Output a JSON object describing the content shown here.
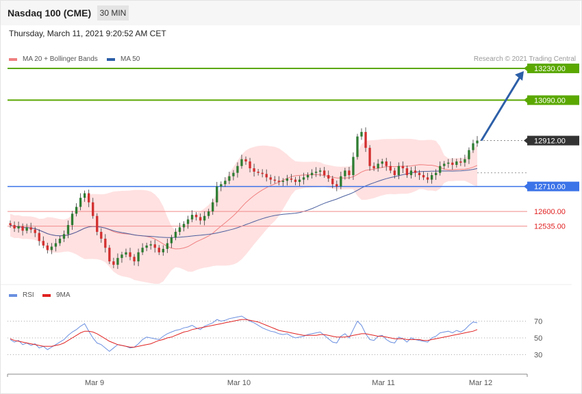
{
  "header": {
    "title": "Nasdaq 100 (CME)",
    "timeframe": "30 MIN",
    "timestamp": "Thursday, March 11, 2021 9:20:52 AM CET"
  },
  "legend": {
    "ma20_label": "MA 20 + Bollinger Bands",
    "ma50_label": "MA 50",
    "credit": "Research © 2021 Trading Central",
    "rsi_label": "RSI",
    "rsi_ma_label": "9MA"
  },
  "colors": {
    "up_candle": "#2e7d32",
    "down_candle": "#d32f2f",
    "resistance": "#5aa800",
    "support_blue": "#3b73e8",
    "support_red": "#f08a8a",
    "current_tag": "#333333",
    "ma20": "#f08080",
    "ma50": "#4a5f9e",
    "bollinger_fill": "#ffdcdc",
    "arrow": "#2d5fa8",
    "rsi": "#6a8fe0",
    "rsi_ma": "#e02020"
  },
  "chart_data": [
    {
      "type": "candlestick",
      "title": "Nasdaq 100 (CME)",
      "xlabel": "",
      "ylabel": "",
      "x_ticks": [
        "Mar 9",
        "Mar 10",
        "Mar 11",
        "Mar 12"
      ],
      "ylim": [
        12290,
        13260
      ],
      "price_levels": [
        {
          "value": 13230.0,
          "label": "13230.00",
          "kind": "resistance"
        },
        {
          "value": 13090.0,
          "label": "13090.00",
          "kind": "resistance"
        },
        {
          "value": 12912.0,
          "label": "12912.00",
          "kind": "current"
        },
        {
          "value": 12710.0,
          "label": "12710.00",
          "kind": "pivot"
        },
        {
          "value": 12600.0,
          "label": "12600.00",
          "kind": "support"
        },
        {
          "value": 12535.0,
          "label": "12535.00",
          "kind": "support"
        }
      ],
      "closes": [
        12540,
        12525,
        12535,
        12515,
        12530,
        12520,
        12505,
        12470,
        12450,
        12430,
        12445,
        12460,
        12480,
        12500,
        12540,
        12590,
        12620,
        12660,
        12680,
        12640,
        12580,
        12510,
        12480,
        12440,
        12380,
        12365,
        12395,
        12410,
        12420,
        12400,
        12380,
        12420,
        12440,
        12450,
        12455,
        12440,
        12420,
        12435,
        12460,
        12485,
        12510,
        12530,
        12545,
        12565,
        12585,
        12575,
        12560,
        12580,
        12600,
        12640,
        12710,
        12720,
        12735,
        12755,
        12770,
        12800,
        12830,
        12820,
        12790,
        12775,
        12770,
        12765,
        12750,
        12740,
        12735,
        12730,
        12735,
        12745,
        12740,
        12730,
        12740,
        12750,
        12760,
        12770,
        12775,
        12780,
        12760,
        12745,
        12720,
        12710,
        12755,
        12780,
        12760,
        12840,
        12930,
        12950,
        12880,
        12800,
        12790,
        12810,
        12820,
        12800,
        12780,
        12760,
        12800,
        12790,
        12760,
        12780,
        12770,
        12760,
        12750,
        12740,
        12760,
        12770,
        12800,
        12810,
        12815,
        12805,
        12820,
        12815,
        12830,
        12870,
        12900,
        12912
      ],
      "rsi": {
        "levels": [
          70,
          50,
          30
        ],
        "ylim": [
          10,
          90
        ],
        "values": [
          48,
          45,
          47,
          42,
          44,
          41,
          43,
          38,
          40,
          36,
          39,
          42,
          45,
          48,
          53,
          57,
          60,
          64,
          67,
          58,
          50,
          44,
          42,
          38,
          34,
          38,
          42,
          41,
          40,
          38,
          39,
          43,
          48,
          51,
          50,
          49,
          48,
          52,
          55,
          57,
          59,
          60,
          62,
          63,
          65,
          62,
          60,
          64,
          66,
          68,
          72,
          70,
          71,
          73,
          74,
          75,
          76,
          73,
          70,
          68,
          65,
          62,
          60,
          58,
          57,
          55,
          54,
          55,
          52,
          50,
          51,
          52,
          54,
          55,
          56,
          57,
          53,
          49,
          45,
          44,
          52,
          55,
          50,
          60,
          70,
          65,
          55,
          48,
          47,
          52,
          53,
          48,
          45,
          44,
          51,
          49,
          45,
          50,
          48,
          47,
          46,
          45,
          50,
          52,
          56,
          57,
          58,
          56,
          59,
          57,
          60,
          65,
          69,
          68
        ],
        "ma9": [
          49,
          47,
          46,
          45,
          44,
          43,
          42,
          41,
          40,
          40,
          40,
          41,
          42,
          44,
          47,
          50,
          53,
          56,
          58,
          58,
          57,
          55,
          52,
          49,
          46,
          44,
          42,
          41,
          40,
          39,
          39,
          40,
          41,
          42,
          43,
          45,
          47,
          48,
          50,
          51,
          53,
          55,
          57,
          58,
          60,
          61,
          62,
          63,
          64,
          65,
          66,
          67,
          68,
          69,
          70,
          71,
          72,
          72,
          71,
          70,
          69,
          67,
          65,
          63,
          61,
          59,
          58,
          57,
          56,
          55,
          54,
          53,
          53,
          53,
          53,
          54,
          54,
          53,
          52,
          51,
          51,
          51,
          52,
          53,
          54,
          55,
          55,
          54,
          53,
          52,
          52,
          51,
          50,
          49,
          49,
          49,
          48,
          48,
          48,
          48,
          47,
          47,
          48,
          49,
          50,
          51,
          52,
          53,
          54,
          55,
          56,
          57,
          58,
          60
        ]
      }
    }
  ]
}
